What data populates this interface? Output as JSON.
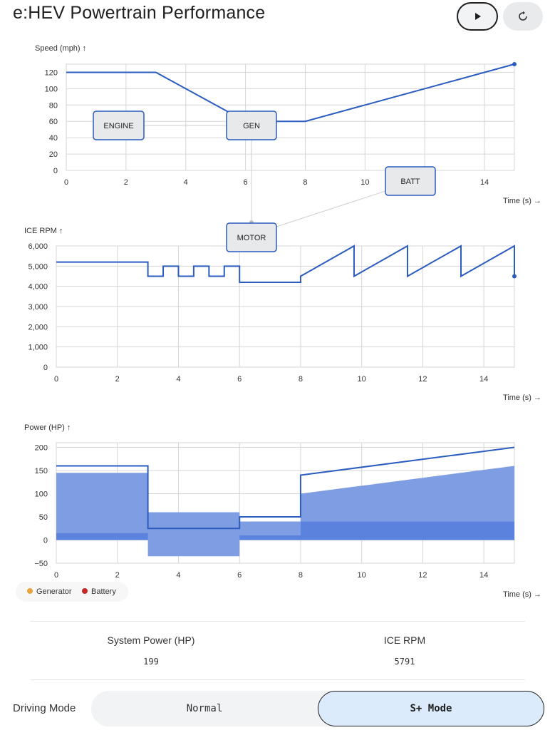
{
  "header": {
    "title": "e:HEV Powertrain Performance"
  },
  "controls": {
    "play_icon": "play-icon",
    "reset_icon": "reset-icon"
  },
  "diagram": {
    "nodes": {
      "engine": "ENGINE",
      "gen": "GEN",
      "batt": "BATT",
      "motor": "MOTOR"
    }
  },
  "legend": {
    "items": [
      {
        "label": "Generator",
        "color": "#e8a33d"
      },
      {
        "label": "Battery",
        "color": "#c62828"
      }
    ]
  },
  "stats": {
    "system_power_label": "System Power (HP)",
    "system_power_value": "199",
    "ice_rpm_label": "ICE RPM",
    "ice_rpm_value": "5791"
  },
  "mode": {
    "label": "Driving Mode",
    "options": [
      "Normal",
      "S+ Mode"
    ],
    "selected": "S+ Mode"
  },
  "chart_data": [
    {
      "type": "line",
      "ylabel": "Speed (mph) ↑",
      "xlabel": "Time (s) →",
      "xlim": [
        0,
        15
      ],
      "ylim": [
        0,
        130
      ],
      "xticks": [
        0,
        2,
        4,
        6,
        8,
        10,
        12,
        14
      ],
      "yticks": [
        0,
        20,
        40,
        60,
        80,
        100,
        120
      ],
      "ytick_labels": [
        "0",
        "20",
        "40",
        "60",
        "80",
        "100",
        "120"
      ],
      "line_color": "#2b5cbf",
      "series": [
        {
          "x": [
            0,
            3,
            5.5,
            6,
            8,
            15
          ],
          "y": [
            120,
            120,
            70,
            60,
            60,
            130
          ]
        }
      ]
    },
    {
      "type": "line",
      "ylabel": "ICE RPM ↑",
      "xlabel": "Time (s) →",
      "xlim": [
        0,
        15
      ],
      "ylim": [
        0,
        6000
      ],
      "xticks": [
        0,
        2,
        4,
        6,
        8,
        10,
        12,
        14
      ],
      "yticks": [
        0,
        1000,
        2000,
        3000,
        4000,
        5000,
        6000
      ],
      "ytick_labels": [
        "0",
        "1,000",
        "2,000",
        "3,000",
        "4,000",
        "5,000",
        "6,000"
      ],
      "line_color": "#2b5cbf",
      "series": [
        {
          "x": [
            0,
            3,
            3,
            3.5,
            3.5,
            4,
            4,
            4.5,
            4.5,
            5,
            5,
            5.5,
            5.5,
            6,
            6,
            8,
            8,
            9.75,
            9.75,
            11.5,
            11.5,
            13.25,
            13.25,
            15,
            15
          ],
          "y": [
            5200,
            5200,
            4500,
            4500,
            5000,
            5000,
            4500,
            4500,
            5000,
            5000,
            4500,
            4500,
            5000,
            5000,
            4200,
            4200,
            4500,
            6000,
            4500,
            6000,
            4500,
            6000,
            4500,
            6000,
            4500
          ]
        }
      ]
    },
    {
      "type": "area",
      "ylabel": "Power (HP) ↑",
      "xlabel": "Time (s) →",
      "xlim": [
        0,
        15
      ],
      "ylim": [
        -50,
        210
      ],
      "xticks": [
        0,
        2,
        4,
        6,
        8,
        10,
        12,
        14
      ],
      "yticks": [
        -50,
        0,
        50,
        100,
        150,
        200
      ],
      "ytick_labels": [
        "−50",
        "0",
        "50",
        "100",
        "150",
        "200"
      ],
      "series": [
        {
          "kind": "area",
          "color": "#7f9de3",
          "x": [
            0,
            3,
            3,
            6,
            6,
            8,
            8,
            15
          ],
          "y0": [
            0,
            0,
            -35,
            -35,
            0,
            0,
            0,
            0
          ],
          "y1": [
            145,
            145,
            60,
            60,
            40,
            40,
            100,
            160
          ]
        },
        {
          "kind": "area",
          "color": "#5b82dd",
          "x": [
            0,
            3,
            3,
            6,
            6,
            8,
            8,
            15
          ],
          "y0": [
            0,
            0,
            0,
            0,
            0,
            0,
            0,
            0
          ],
          "y1": [
            15,
            15,
            0,
            0,
            10,
            10,
            40,
            40
          ]
        },
        {
          "kind": "line",
          "color": "#2b5cbf",
          "x": [
            0,
            3,
            3,
            6,
            6,
            8,
            8,
            15
          ],
          "y": [
            160,
            160,
            25,
            25,
            50,
            50,
            140,
            200
          ]
        }
      ]
    }
  ]
}
